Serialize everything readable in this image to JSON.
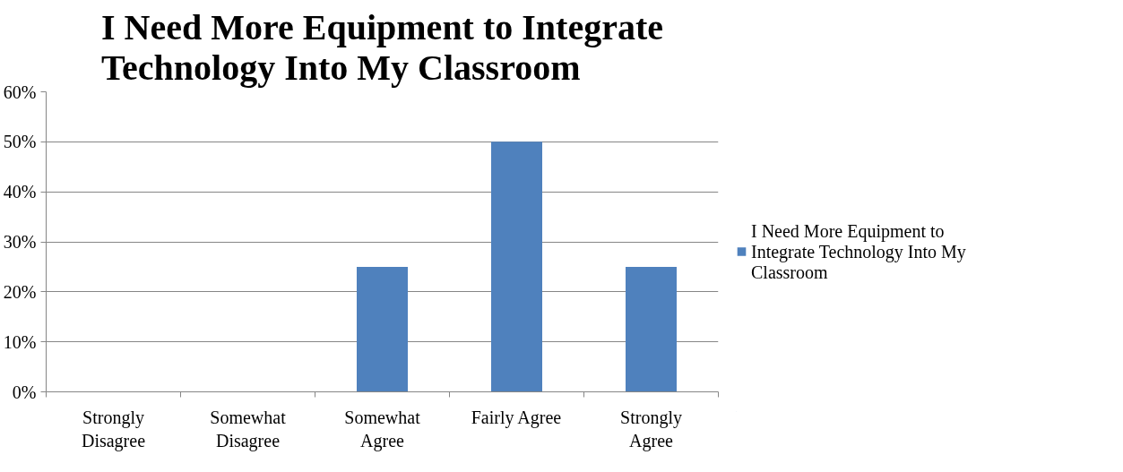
{
  "chart_data": {
    "type": "bar",
    "title": "I Need More Equipment to Integrate Technology Into My Classroom",
    "categories": [
      "Strongly Disagree",
      "Somewhat Disagree",
      "Somewhat Agree",
      "Fairly Agree",
      "Strongly Agree"
    ],
    "series": [
      {
        "name": "I Need More Equipment to Integrate Technology Into My Classroom",
        "color": "#4f81bd",
        "values": [
          0,
          0,
          25,
          50,
          25
        ]
      }
    ],
    "ylim": [
      0,
      60
    ],
    "yticks": [
      {
        "value": 0,
        "label": "0%"
      },
      {
        "value": 10,
        "label": "10%"
      },
      {
        "value": 20,
        "label": "20%"
      },
      {
        "value": 30,
        "label": "30%"
      },
      {
        "value": 40,
        "label": "40%"
      },
      {
        "value": 50,
        "label": "50%"
      },
      {
        "value": 60,
        "label": "60%"
      }
    ],
    "grid": "y",
    "legend": "right"
  }
}
